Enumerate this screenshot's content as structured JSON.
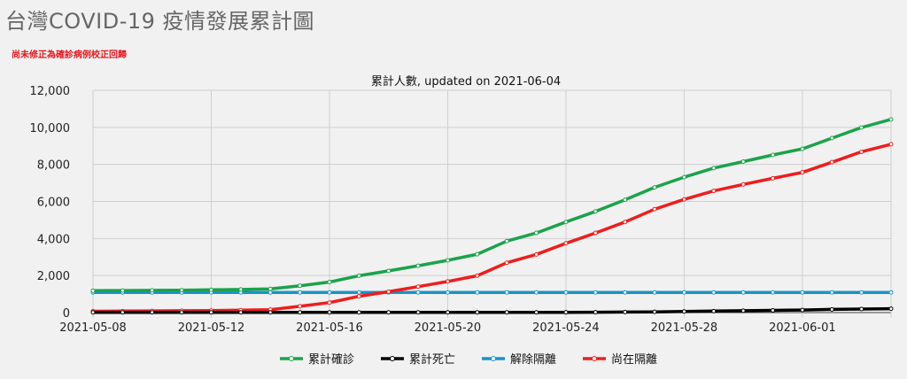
{
  "page": {
    "title": "台灣COVID-19 疫情發展累計圖",
    "note": "尚未修正為確診病例校正回歸"
  },
  "chart_data": {
    "type": "line",
    "title": "累計人數, updated on 2021-06-04",
    "xlabel": "",
    "ylabel": "",
    "ylim": [
      0,
      12000
    ],
    "y_ticks": [
      0,
      2000,
      4000,
      6000,
      8000,
      10000,
      12000
    ],
    "y_tick_labels": [
      "0",
      "2,000",
      "4,000",
      "6,000",
      "8,000",
      "10,000",
      "12,000"
    ],
    "x": [
      "2021-05-08",
      "2021-05-09",
      "2021-05-10",
      "2021-05-11",
      "2021-05-12",
      "2021-05-13",
      "2021-05-14",
      "2021-05-15",
      "2021-05-16",
      "2021-05-17",
      "2021-05-18",
      "2021-05-19",
      "2021-05-20",
      "2021-05-21",
      "2021-05-22",
      "2021-05-23",
      "2021-05-24",
      "2021-05-25",
      "2021-05-26",
      "2021-05-27",
      "2021-05-28",
      "2021-05-29",
      "2021-05-30",
      "2021-05-31",
      "2021-06-01",
      "2021-06-02",
      "2021-06-03",
      "2021-06-04"
    ],
    "x_tick_labels": [
      "2021-05-08",
      "2021-05-12",
      "2021-05-16",
      "2021-05-20",
      "2021-05-24",
      "2021-05-28",
      "2021-06-01"
    ],
    "grid": true,
    "legend_position": "bottom",
    "series": [
      {
        "name": "累計確診",
        "color": "#1aa34a",
        "values": [
          1180,
          1190,
          1200,
          1210,
          1230,
          1250,
          1280,
          1450,
          1650,
          1990,
          2250,
          2530,
          2820,
          3150,
          3860,
          4300,
          4890,
          5460,
          6090,
          6760,
          7310,
          7800,
          8150,
          8510,
          8840,
          9420,
          9990,
          10430
        ]
      },
      {
        "name": "累計死亡",
        "color": "#000000",
        "values": [
          12,
          12,
          12,
          12,
          12,
          12,
          12,
          12,
          12,
          12,
          12,
          12,
          12,
          12,
          12,
          13,
          15,
          20,
          28,
          40,
          60,
          80,
          100,
          120,
          140,
          170,
          190,
          210
        ]
      },
      {
        "name": "解除隔離",
        "color": "#1a93c9",
        "values": [
          1090,
          1090,
          1090,
          1090,
          1090,
          1090,
          1090,
          1090,
          1090,
          1090,
          1090,
          1090,
          1090,
          1090,
          1090,
          1090,
          1090,
          1090,
          1090,
          1090,
          1090,
          1090,
          1090,
          1090,
          1090,
          1090,
          1090,
          1090
        ]
      },
      {
        "name": "尚在隔離",
        "color": "#ee1d1d",
        "values": [
          70,
          80,
          90,
          100,
          110,
          130,
          160,
          340,
          540,
          880,
          1130,
          1400,
          1680,
          1990,
          2690,
          3140,
          3740,
          4300,
          4890,
          5580,
          6110,
          6570,
          6920,
          7250,
          7570,
          8120,
          8680,
          9090
        ]
      }
    ]
  }
}
